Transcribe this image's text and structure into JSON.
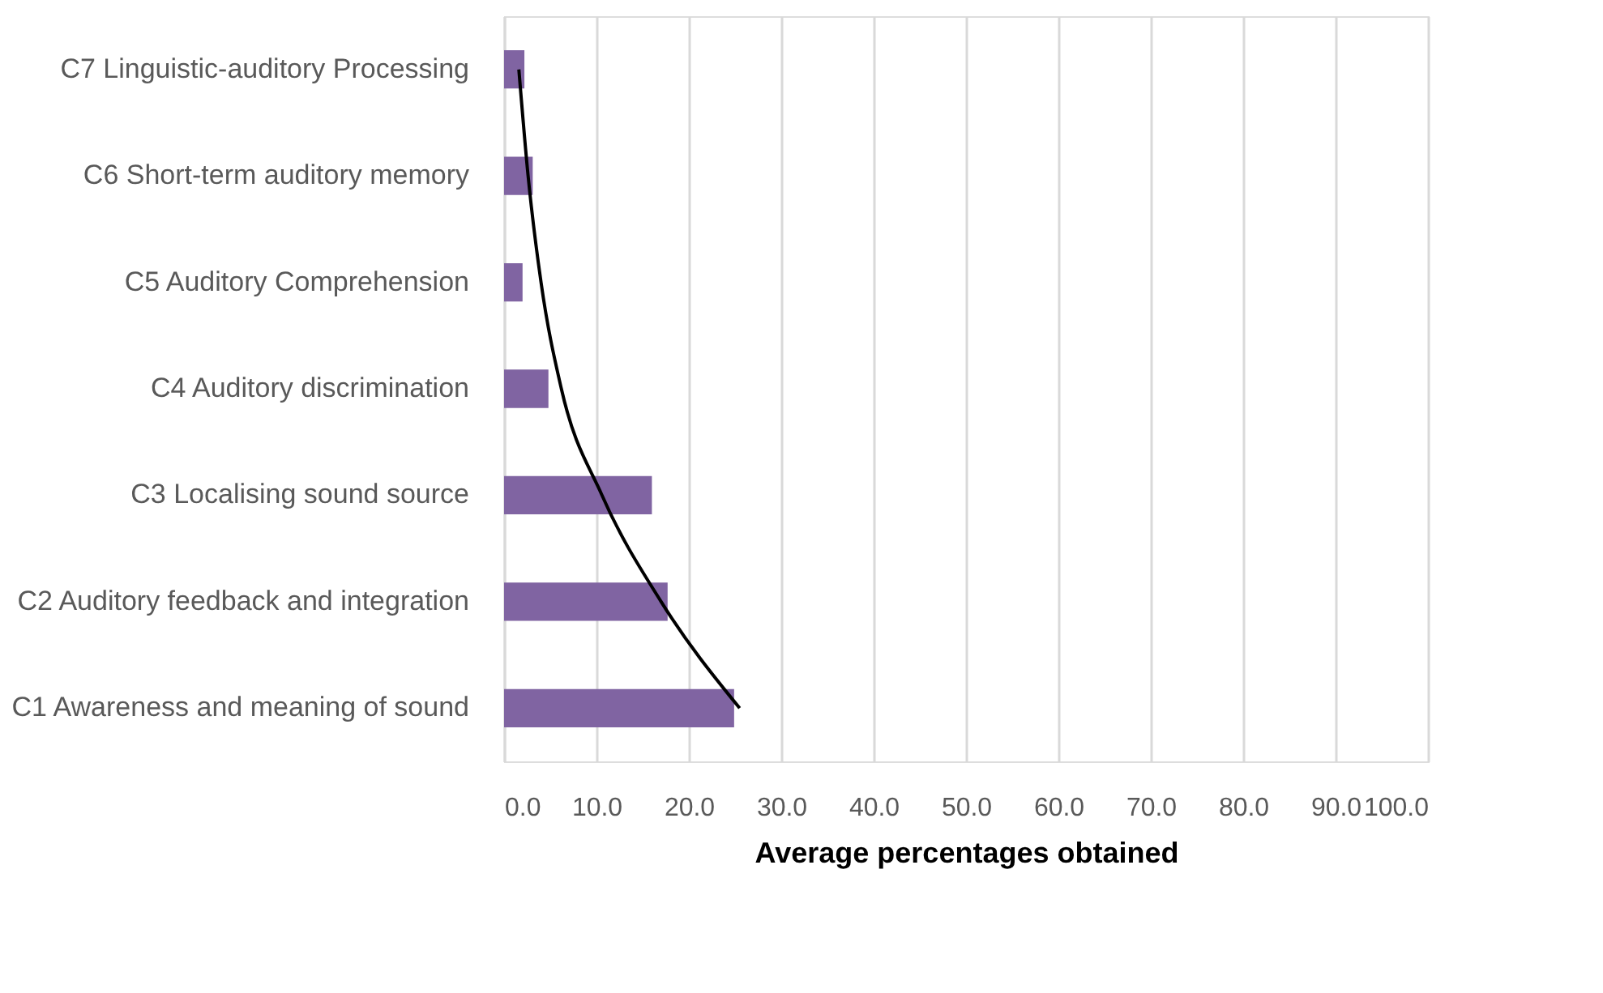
{
  "chart_data": {
    "type": "bar",
    "orientation": "horizontal",
    "xlabel": "Average percentages obtained",
    "categories": [
      "C7 Linguistic-auditory Processing",
      "C6 Short-term auditory memory",
      "C5 Auditory Comprehension",
      "C4 Auditory discrimination",
      "C3 Localising sound source",
      "C2 Auditory feedback and integration",
      "C1 Awareness and meaning of sound"
    ],
    "series": [
      {
        "color": "#8064a2",
        "values": [
          2.2,
          3.1,
          2.0,
          4.8,
          16.0,
          17.7,
          24.9
        ]
      },
      {
        "type": "line",
        "color": "#000000",
        "values": [
          1.6,
          2.6,
          4.0,
          6.2,
          10.6,
          17.0,
          25.5
        ]
      }
    ],
    "xlim": [
      0,
      100
    ],
    "xticks": [
      {
        "value": 0,
        "label": "0.0"
      },
      {
        "value": 10,
        "label": "10.0"
      },
      {
        "value": 20,
        "label": "20.0"
      },
      {
        "value": 30,
        "label": "30.0"
      },
      {
        "value": 40,
        "label": "40.0"
      },
      {
        "value": 50,
        "label": "50.0"
      },
      {
        "value": 60,
        "label": "60.0"
      },
      {
        "value": 70,
        "label": "70.0"
      },
      {
        "value": 80,
        "label": "80.0"
      },
      {
        "value": 90,
        "label": "90.0"
      },
      {
        "value": 100,
        "label": "100.0"
      }
    ],
    "grid": "x",
    "marker": "none",
    "line_style": "solid"
  }
}
